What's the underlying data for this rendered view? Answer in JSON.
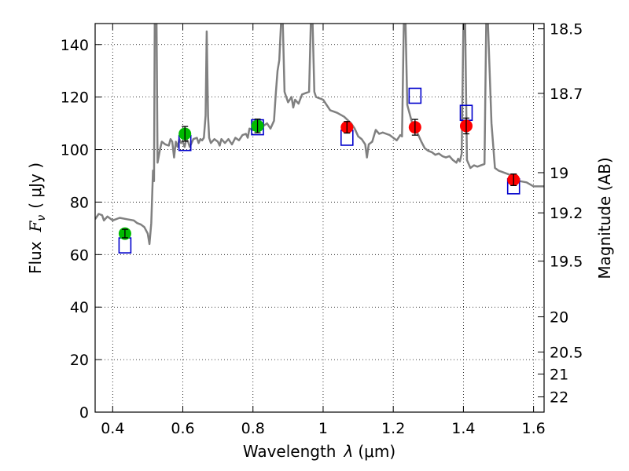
{
  "chart_data": {
    "type": "scatter",
    "xlabel_prefix": "Wavelength",
    "xlabel_symbol": "λ",
    "xlabel_unit": "(μm)",
    "ylabel_prefix": "Flux",
    "ylabel_symbol": "F",
    "ylabel_sub": "ν",
    "ylabel_unit": "( μJy )",
    "y2label": "Magnitude (AB)",
    "xlim": [
      0.35,
      1.63
    ],
    "ylim": [
      0,
      148
    ],
    "grid": true,
    "x_ticks": [
      0.4,
      0.6,
      0.8,
      1.0,
      1.2,
      1.4,
      1.6
    ],
    "x_tick_labels": [
      "0.4",
      "0.6",
      "0.8",
      "1",
      "1.2",
      "1.4",
      "1.6"
    ],
    "y_ticks": [
      0,
      20,
      40,
      60,
      80,
      100,
      120,
      140
    ],
    "y_tick_labels": [
      "0",
      "20",
      "40",
      "60",
      "80",
      "100",
      "120",
      "140"
    ],
    "y2_ticks": [
      {
        "label": "18.5",
        "flux": 146.0
      },
      {
        "label": "18.7",
        "flux": 121.4
      },
      {
        "label": "19",
        "flux": 91.2
      },
      {
        "label": "19.2",
        "flux": 75.9
      },
      {
        "label": "19.5",
        "flux": 57.5
      },
      {
        "label": "20",
        "flux": 36.3
      },
      {
        "label": "20.5",
        "flux": 22.9
      },
      {
        "label": "21",
        "flux": 14.5
      },
      {
        "label": "22",
        "flux": 5.8
      }
    ],
    "series": [
      {
        "kind": "model_spectrum",
        "color": "#808080",
        "points": [
          [
            0.35,
            73.5
          ],
          [
            0.36,
            75.5
          ],
          [
            0.37,
            75.0
          ],
          [
            0.375,
            73.0
          ],
          [
            0.385,
            74.5
          ],
          [
            0.4,
            73.0
          ],
          [
            0.42,
            74.0
          ],
          [
            0.44,
            73.5
          ],
          [
            0.46,
            73.0
          ],
          [
            0.47,
            72.0
          ],
          [
            0.48,
            71.5
          ],
          [
            0.49,
            70.5
          ],
          [
            0.5,
            68.0
          ],
          [
            0.505,
            64.0
          ],
          [
            0.51,
            72.0
          ],
          [
            0.515,
            92.0
          ],
          [
            0.518,
            88.0
          ],
          [
            0.52,
            148.0
          ],
          [
            0.525,
            148.0
          ],
          [
            0.528,
            95.0
          ],
          [
            0.535,
            100.0
          ],
          [
            0.54,
            103.0
          ],
          [
            0.55,
            102.0
          ],
          [
            0.56,
            101.5
          ],
          [
            0.565,
            104.0
          ],
          [
            0.57,
            103.0
          ],
          [
            0.575,
            97.0
          ],
          [
            0.58,
            103.0
          ],
          [
            0.585,
            101.0
          ],
          [
            0.59,
            104.0
          ],
          [
            0.595,
            102.5
          ],
          [
            0.6,
            103.0
          ],
          [
            0.605,
            101.0
          ],
          [
            0.61,
            104.0
          ],
          [
            0.615,
            103.0
          ],
          [
            0.62,
            101.0
          ],
          [
            0.63,
            104.0
          ],
          [
            0.64,
            104.5
          ],
          [
            0.645,
            102.5
          ],
          [
            0.65,
            104.0
          ],
          [
            0.655,
            103.5
          ],
          [
            0.66,
            104.5
          ],
          [
            0.665,
            113.0
          ],
          [
            0.668,
            145.0
          ],
          [
            0.672,
            113.0
          ],
          [
            0.675,
            104.5
          ],
          [
            0.68,
            102.5
          ],
          [
            0.69,
            104.0
          ],
          [
            0.7,
            103.0
          ],
          [
            0.705,
            101.5
          ],
          [
            0.71,
            104.0
          ],
          [
            0.72,
            102.5
          ],
          [
            0.73,
            104.0
          ],
          [
            0.74,
            102.0
          ],
          [
            0.75,
            104.5
          ],
          [
            0.76,
            103.5
          ],
          [
            0.77,
            105.5
          ],
          [
            0.78,
            106.0
          ],
          [
            0.785,
            104.5
          ],
          [
            0.79,
            108.0
          ],
          [
            0.8,
            107.5
          ],
          [
            0.81,
            107.0
          ],
          [
            0.82,
            107.5
          ],
          [
            0.83,
            109.0
          ],
          [
            0.84,
            110.0
          ],
          [
            0.85,
            108.0
          ],
          [
            0.86,
            111.0
          ],
          [
            0.865,
            121.0
          ],
          [
            0.87,
            130.0
          ],
          [
            0.875,
            134.0
          ],
          [
            0.88,
            148.0
          ],
          [
            0.885,
            148.0
          ],
          [
            0.89,
            122.0
          ],
          [
            0.895,
            120.0
          ],
          [
            0.9,
            118.0
          ],
          [
            0.91,
            120.0
          ],
          [
            0.915,
            116.0
          ],
          [
            0.92,
            119.0
          ],
          [
            0.93,
            117.5
          ],
          [
            0.94,
            121.0
          ],
          [
            0.95,
            121.5
          ],
          [
            0.96,
            122.0
          ],
          [
            0.965,
            148.0
          ],
          [
            0.97,
            148.0
          ],
          [
            0.975,
            122.0
          ],
          [
            0.98,
            120.0
          ],
          [
            1.0,
            119.0
          ],
          [
            1.02,
            115.0
          ],
          [
            1.04,
            114.0
          ],
          [
            1.06,
            112.5
          ],
          [
            1.08,
            110.0
          ],
          [
            1.09,
            108.0
          ],
          [
            1.1,
            105.0
          ],
          [
            1.11,
            104.0
          ],
          [
            1.12,
            102.0
          ],
          [
            1.125,
            97.0
          ],
          [
            1.13,
            102.0
          ],
          [
            1.14,
            103.0
          ],
          [
            1.15,
            107.5
          ],
          [
            1.16,
            106.0
          ],
          [
            1.17,
            106.5
          ],
          [
            1.18,
            106.0
          ],
          [
            1.19,
            105.5
          ],
          [
            1.2,
            104.5
          ],
          [
            1.21,
            103.5
          ],
          [
            1.22,
            105.5
          ],
          [
            1.225,
            105.0
          ],
          [
            1.23,
            148.0
          ],
          [
            1.235,
            148.0
          ],
          [
            1.24,
            117.0
          ],
          [
            1.25,
            112.0
          ],
          [
            1.26,
            107.5
          ],
          [
            1.27,
            106.0
          ],
          [
            1.28,
            103.0
          ],
          [
            1.29,
            100.5
          ],
          [
            1.3,
            99.5
          ],
          [
            1.31,
            99.0
          ],
          [
            1.32,
            98.0
          ],
          [
            1.33,
            98.5
          ],
          [
            1.34,
            97.5
          ],
          [
            1.35,
            97.0
          ],
          [
            1.36,
            97.5
          ],
          [
            1.37,
            96.0
          ],
          [
            1.38,
            95.0
          ],
          [
            1.385,
            96.5
          ],
          [
            1.39,
            95.5
          ],
          [
            1.395,
            98.5
          ],
          [
            1.4,
            148.0
          ],
          [
            1.405,
            148.0
          ],
          [
            1.41,
            96.0
          ],
          [
            1.42,
            93.0
          ],
          [
            1.43,
            94.0
          ],
          [
            1.44,
            93.5
          ],
          [
            1.45,
            94.0
          ],
          [
            1.46,
            94.5
          ],
          [
            1.465,
            148.0
          ],
          [
            1.47,
            148.0
          ],
          [
            1.48,
            110.0
          ],
          [
            1.49,
            93.0
          ],
          [
            1.5,
            92.0
          ],
          [
            1.52,
            91.0
          ],
          [
            1.54,
            90.0
          ],
          [
            1.56,
            88.0
          ],
          [
            1.58,
            87.5
          ],
          [
            1.6,
            86.0
          ],
          [
            1.63,
            86.0
          ]
        ]
      },
      {
        "kind": "model_photometry",
        "marker": "open-square",
        "color": "#0000cc",
        "points": [
          [
            0.435,
            63.5
          ],
          [
            0.606,
            102.5
          ],
          [
            0.813,
            108.5
          ],
          [
            1.068,
            104.5
          ],
          [
            1.262,
            120.5
          ],
          [
            1.408,
            114.0
          ],
          [
            1.543,
            86.0
          ]
        ]
      },
      {
        "kind": "observed_optical",
        "marker": "filled-circle",
        "color": "#00bb00",
        "points": [
          {
            "x": 0.435,
            "y": 68.0,
            "err": 1.6
          },
          {
            "x": 0.606,
            "y": 106.0,
            "err": 2.8
          },
          {
            "x": 0.813,
            "y": 109.0,
            "err": 2.6
          }
        ]
      },
      {
        "kind": "observed_nir",
        "marker": "filled-circle",
        "color": "#ff0000",
        "points": [
          {
            "x": 1.068,
            "y": 108.5,
            "err": 2.2
          },
          {
            "x": 1.262,
            "y": 108.5,
            "err": 3.0
          },
          {
            "x": 1.408,
            "y": 109.0,
            "err": 3.0
          },
          {
            "x": 1.543,
            "y": 88.5,
            "err": 2.2
          }
        ]
      }
    ]
  }
}
